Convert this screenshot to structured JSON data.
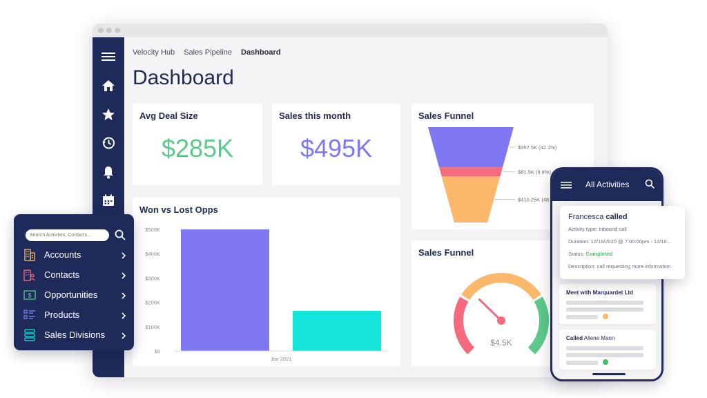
{
  "browser": {
    "breadcrumb": [
      "Velocity Hub",
      "Sales Pipeline",
      "Dashboard"
    ],
    "page_title": "Dashboard"
  },
  "rail": {
    "icons": [
      "menu-icon",
      "home-icon",
      "star-icon",
      "history-icon",
      "bell-icon",
      "calendar-icon"
    ]
  },
  "cards": {
    "avg_deal": {
      "title": "Avg Deal Size",
      "value": "$285K",
      "color": "#5cc98a"
    },
    "sales_month": {
      "title": "Sales this month",
      "value": "$495K",
      "color": "#7f78f2"
    },
    "funnel": {
      "title": "Sales Funnel"
    },
    "won_lost": {
      "title": "Won vs Lost Opps"
    },
    "gauge": {
      "title": "Sales Funnel",
      "value": "$4.5K"
    }
  },
  "chart_data": [
    {
      "type": "funnel",
      "title": "Sales Funnel",
      "stages": [
        {
          "label": "$357.5K (42.1%)",
          "value": 357.5,
          "percent": 42.1,
          "color": "#7f78f2"
        },
        {
          "label": "$81.5K (9.6%)",
          "value": 81.5,
          "percent": 9.6,
          "color": "#f46b7e"
        },
        {
          "label": "$410.25K (48.3%)",
          "value": 410.25,
          "percent": 48.3,
          "color": "#fbb86a"
        }
      ]
    },
    {
      "type": "bar",
      "title": "Won vs Lost Opps",
      "categories": [
        "Jan 2021"
      ],
      "series": [
        {
          "values": [
            500
          ],
          "color": "#7f78f2"
        },
        {
          "values": [
            165
          ],
          "color": "#14e6dc"
        }
      ],
      "yticks": [
        "$0",
        "$100K",
        "$200K",
        "$300K",
        "$400K",
        "$500K"
      ],
      "ylim": [
        0,
        500
      ],
      "grid": false
    },
    {
      "type": "gauge",
      "title": "Sales Funnel",
      "value_label": "$4.5K",
      "needle_fraction": 0.33,
      "segments": [
        "#f46b7e",
        "#fbb86a",
        "#5cc98a"
      ]
    }
  ],
  "nav_panel": {
    "search_placeholder": "Search Activities, Contacts...",
    "items": [
      {
        "label": "Accounts",
        "icon": "building-icon"
      },
      {
        "label": "Contacts",
        "icon": "contacts-icon"
      },
      {
        "label": "Opportunities",
        "icon": "dollar-icon"
      },
      {
        "label": "Products",
        "icon": "product-list-icon"
      },
      {
        "label": "Sales Divisions",
        "icon": "divisions-icon"
      }
    ]
  },
  "phone": {
    "title": "All Activities",
    "cards": [
      {
        "title": "Meet with Marquardet Ltd",
        "dot_color": "#fbb86a"
      },
      {
        "title_bold": "Called",
        "title_rest": " Allene Mann",
        "dot_color": "#3fbf6b"
      }
    ]
  },
  "popup": {
    "name": "Francesca",
    "action": "called",
    "activity_type_label": "Activity type:",
    "activity_type": "Inbound call",
    "duration_label": "Duration:",
    "duration": "12/16/2020 @ 7:00:00pm - 12/16...",
    "status_label": "Status:",
    "status": "Completed",
    "description_label": "Description:",
    "description": "call requesting more information"
  }
}
